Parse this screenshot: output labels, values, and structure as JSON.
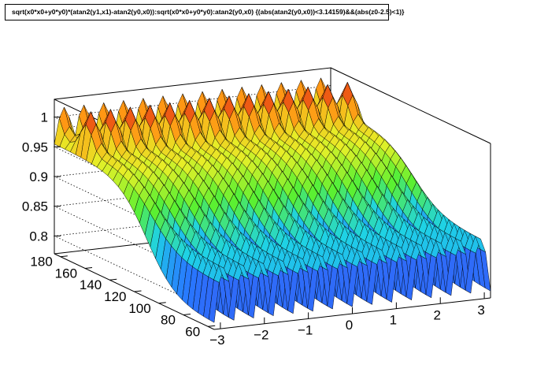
{
  "chart_data": {
    "type": "surface",
    "title": "sqrt(x0*x0+y0*y0)*(atan2(y1,x1)-atan2(y0,x0)):sqrt(x0*x0+y0*y0):atan2(y0,x0) {(abs(atan2(y0,x0))<3.14159)&&(abs(z0-2.5)<1)}",
    "xlabel": "",
    "ylabel": "",
    "zlabel": "",
    "x_range": [
      -3.14159,
      3.14159
    ],
    "y_range": [
      55,
      185
    ],
    "z_range": [
      0.77,
      1.03
    ],
    "x_ticks": [
      "−3",
      "−2",
      "−1",
      "0",
      "1",
      "2",
      "3"
    ],
    "x_tick_values": [
      -3,
      -2,
      -1,
      0,
      1,
      2,
      3
    ],
    "y_ticks": [
      "60",
      "80",
      "100",
      "120",
      "140",
      "160",
      "180"
    ],
    "y_tick_values": [
      60,
      80,
      100,
      120,
      140,
      160,
      180
    ],
    "z_ticks": [
      "0.8",
      "0.85",
      "0.9",
      "0.95",
      "1"
    ],
    "z_tick_values": [
      0.8,
      0.85,
      0.9,
      0.95,
      1.0
    ],
    "grid": true,
    "legend": "none",
    "colormap": "rainbow",
    "surface_model": {
      "ripple_periods_in_x": 14,
      "plateau_value": 0.965,
      "high_radius_ridge": 1.0,
      "low_radius_trough": 0.79
    }
  }
}
